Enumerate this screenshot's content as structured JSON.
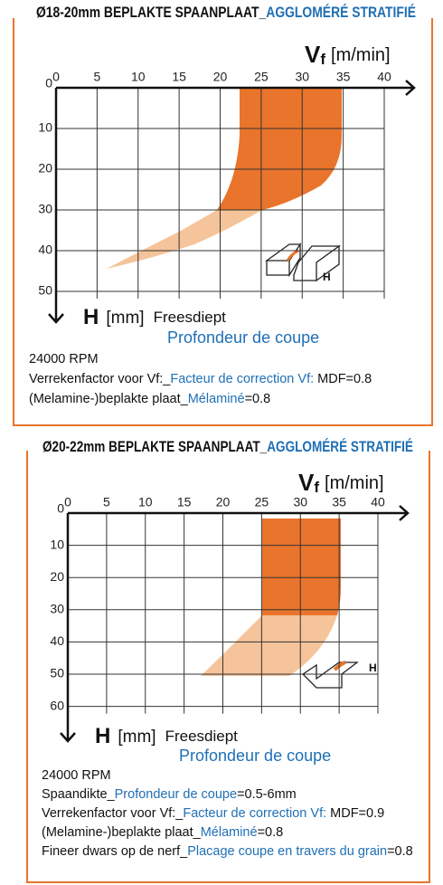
{
  "panels": [
    {
      "title_nl": "Ø18-20mm BEPLAKTE SPAANPLAAT_",
      "title_fr": "AGGLOMÉRÉ STRATIFIÉ",
      "x_axis": {
        "symbol": "V",
        "subscript": "f",
        "unit": "[m/min]"
      },
      "y_axis": {
        "symbol": "H",
        "unit": "[mm]",
        "label_nl": "Freesdiept",
        "label_fr": "Profondeur de coupe"
      },
      "xticks": [
        0,
        5,
        10,
        15,
        20,
        25,
        30,
        35,
        40
      ],
      "yticks": [
        0,
        10,
        20,
        30,
        40,
        50
      ],
      "icon_label": "H",
      "notes": [
        [
          "24000 RPM"
        ],
        [
          "Verrekenfactor voor Vf:_",
          "Facteur de correction Vf:",
          " MDF=0.8"
        ],
        [
          "(Melamine-)beplakte plaat_",
          "Mélaminé",
          "=0.8"
        ]
      ]
    },
    {
      "title_nl": "Ø20-22mm BEPLAKTE SPAANPLAAT_",
      "title_fr": "AGGLOMÉRÉ STRATIFIÉ",
      "x_axis": {
        "symbol": "V",
        "subscript": "f",
        "unit": "[m/min]"
      },
      "y_axis": {
        "symbol": "H",
        "unit": "[mm]",
        "label_nl": "Freesdiept",
        "label_fr": "Profondeur de coupe"
      },
      "xticks": [
        0,
        5,
        10,
        15,
        20,
        25,
        30,
        35,
        40
      ],
      "yticks": [
        0,
        10,
        20,
        30,
        40,
        50,
        60
      ],
      "icon_label": "H",
      "notes": [
        [
          "24000 RPM"
        ],
        [
          "Spaandikte_",
          "Profondeur de coupe",
          "=0.5-6mm"
        ],
        [
          "Verrekenfactor voor Vf:_",
          "Facteur de correction Vf:",
          " MDF=0.9"
        ],
        [
          "(Melamine-)beplakte plaat_",
          "Mélaminé",
          "=0.8"
        ],
        [
          "Fineer dwars op de nerf_",
          "Placage coupe en travers du grain",
          "=0.8"
        ]
      ]
    }
  ]
}
